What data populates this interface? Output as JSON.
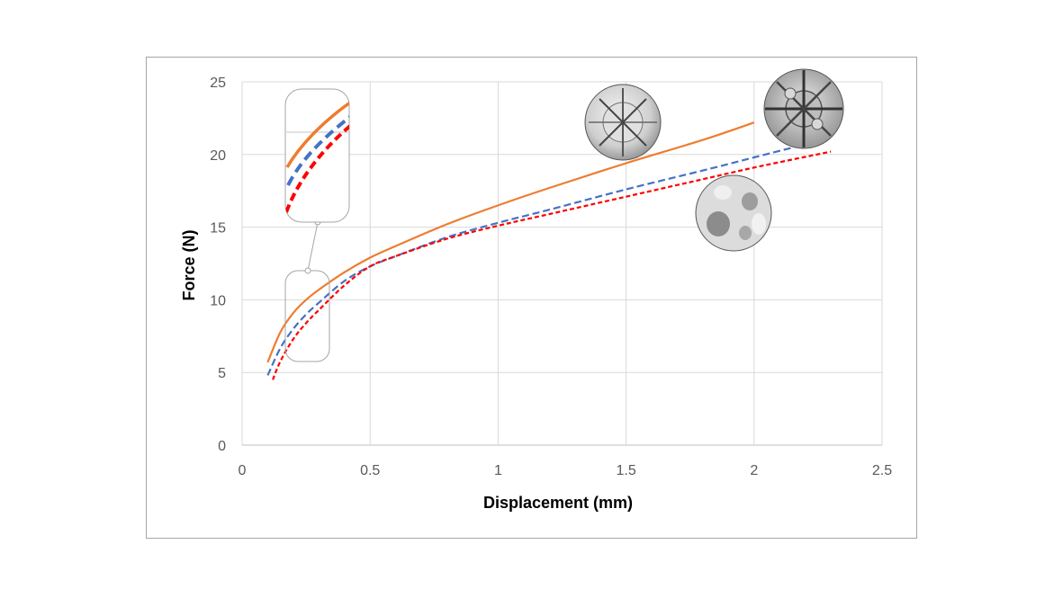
{
  "chart_data": {
    "type": "line",
    "title": "",
    "xlabel": "Displacement (mm)",
    "ylabel": "Force (N)",
    "xlim": [
      0,
      2.5
    ],
    "ylim": [
      0,
      25
    ],
    "xticks": [
      0,
      0.5,
      1,
      1.5,
      2,
      2.5
    ],
    "yticks": [
      0,
      5,
      10,
      15,
      20,
      25
    ],
    "xtick_labels": [
      "0",
      "0.5",
      "1",
      "1.5",
      "2",
      "2.5"
    ],
    "ytick_labels": [
      "0",
      "5",
      "10",
      "15",
      "20",
      "25"
    ],
    "grid": true,
    "legend": "none",
    "series": [
      {
        "color": "#ed7d31",
        "style": "solid",
        "x": [
          0.1,
          0.15,
          0.2,
          0.25,
          0.3,
          0.4,
          0.5,
          0.6,
          0.8,
          1.0,
          1.2,
          1.5,
          1.8,
          2.0
        ],
        "y": [
          5.7,
          7.8,
          9.1,
          10.0,
          10.7,
          11.9,
          12.9,
          13.7,
          15.2,
          16.5,
          17.7,
          19.4,
          21.0,
          22.2
        ]
      },
      {
        "color": "#4472c4",
        "style": "dashed",
        "x": [
          0.1,
          0.15,
          0.2,
          0.25,
          0.3,
          0.4,
          0.5,
          0.6,
          0.8,
          1.0,
          1.2,
          1.5,
          1.8,
          2.0,
          2.2
        ],
        "y": [
          4.8,
          6.7,
          8.0,
          9.0,
          9.8,
          11.3,
          12.3,
          13.0,
          14.3,
          15.3,
          16.2,
          17.6,
          18.9,
          19.8,
          20.7
        ]
      },
      {
        "color": "#ff0000",
        "style": "dotted",
        "x": [
          0.12,
          0.15,
          0.2,
          0.25,
          0.3,
          0.4,
          0.5,
          0.6,
          0.8,
          1.0,
          1.2,
          1.5,
          1.8,
          2.0,
          2.3
        ],
        "y": [
          4.5,
          5.8,
          7.3,
          8.4,
          9.3,
          11.0,
          12.3,
          13.0,
          14.2,
          15.1,
          15.9,
          17.1,
          18.3,
          19.1,
          20.2
        ]
      }
    ],
    "inset": {
      "description": "zoomed region of curves near x 0.15–0.35",
      "anchor": "left"
    },
    "thumbnails": [
      "lattice-thumbnail-1",
      "lattice-thumbnail-2",
      "lattice-thumbnail-3"
    ]
  }
}
